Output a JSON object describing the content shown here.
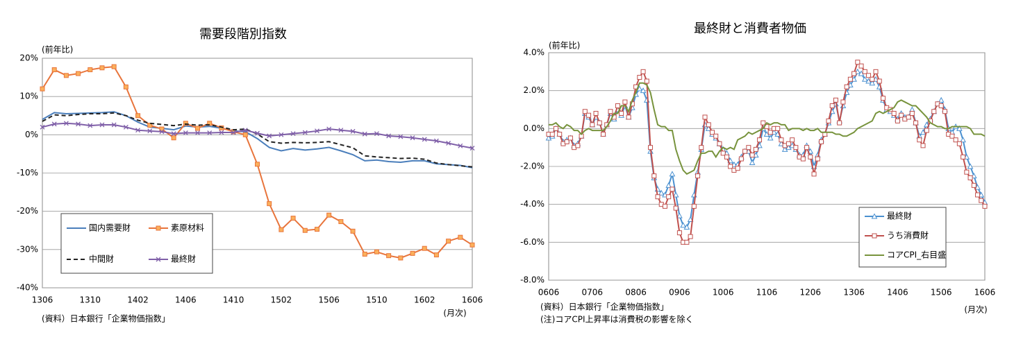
{
  "chart_data": [
    {
      "type": "line",
      "title": "需要段階別指数",
      "y_unit": "(前年比)",
      "x_unit": "(月次)",
      "notes": [
        "(資料）日本銀行「企業物価指数」"
      ],
      "categories": [
        "1306",
        null,
        null,
        null,
        "1310",
        null,
        null,
        null,
        "1402",
        null,
        null,
        null,
        "1406",
        null,
        null,
        null,
        "1410",
        null,
        null,
        null,
        "1502",
        null,
        null,
        null,
        "1506",
        null,
        null,
        null,
        "1510",
        null,
        null,
        null,
        "1602",
        null,
        null,
        null,
        "1606"
      ],
      "ylim": [
        -40,
        20
      ],
      "yticks": [
        {
          "value": -40,
          "label": "-40%"
        },
        {
          "value": -30,
          "label": "-30%"
        },
        {
          "value": -20,
          "label": "-20%"
        },
        {
          "value": -10,
          "label": "-10%"
        },
        {
          "value": 0,
          "label": "0%"
        },
        {
          "value": 10,
          "label": "10%"
        },
        {
          "value": 20,
          "label": "20%"
        }
      ],
      "grid": true,
      "legend": "lower left",
      "series": [
        {
          "name": "国内需要財",
          "color": "#4a7ebb",
          "marker": null,
          "dashed": false,
          "values": [
            4,
            5.8,
            5.5,
            5.6,
            5.7,
            5.8,
            6,
            5,
            3.3,
            2,
            1.7,
            1.3,
            2.3,
            2,
            2.2,
            1.7,
            1,
            0.8,
            -1,
            -3.3,
            -4.2,
            -3.6,
            -4,
            -3.7,
            -3.3,
            -4.2,
            -5.2,
            -6.8,
            -6.6,
            -7,
            -7.2,
            -6.8,
            -6.8,
            -7.6,
            -7.8,
            -8,
            -8.6
          ]
        },
        {
          "name": "素原材料",
          "color": "#e8743b",
          "marker": "square",
          "marker_fill": "#fbb05c",
          "dashed": false,
          "values": [
            12,
            17,
            15.5,
            16,
            17,
            17.5,
            17.8,
            12.5,
            5,
            2.5,
            1.5,
            -0.8,
            3,
            1.7,
            3,
            1.8,
            0.8,
            0,
            -7.7,
            -18,
            -24.8,
            -21.8,
            -25,
            -24.7,
            -21,
            -22.7,
            -25.2,
            -31.2,
            -30.6,
            -31.6,
            -32.2,
            -31,
            -29.7,
            -31.4,
            -27.8,
            -26.8,
            -28.8
          ]
        },
        {
          "name": "中間財",
          "color": "#222222",
          "marker": null,
          "dashed": true,
          "values": [
            3.5,
            5.2,
            5,
            5.3,
            5.5,
            5.5,
            5.7,
            5,
            3.8,
            3,
            2.7,
            2.4,
            2.8,
            2.5,
            2.6,
            2,
            1.3,
            1.5,
            0.2,
            -1.8,
            -2.2,
            -2,
            -2.1,
            -2,
            -1.8,
            -2.6,
            -3.4,
            -5.5,
            -5.8,
            -6,
            -6.2,
            -6.1,
            -6.4,
            -7.4,
            -7.8,
            -8.1,
            -8.4
          ]
        },
        {
          "name": "最終財",
          "color": "#7f5fa8",
          "marker": "x",
          "dashed": false,
          "values": [
            2,
            2.8,
            3,
            2.8,
            2.4,
            2.6,
            2.6,
            2,
            1.2,
            1,
            0.8,
            0.3,
            0.5,
            0.5,
            0.5,
            0.6,
            0.6,
            1.2,
            0.4,
            -0.3,
            0,
            0.3,
            0.6,
            1,
            1.5,
            1.2,
            0.9,
            0.2,
            0.3,
            -0.3,
            -0.5,
            -0.8,
            -1.2,
            -1.6,
            -2.2,
            -2.9,
            -3.5
          ]
        }
      ]
    },
    {
      "type": "line",
      "title": "最終財と消費者物価",
      "y_unit": "(前年比)",
      "x_unit": "(月次)",
      "notes": [
        "(資料）日本銀行「企業物価指数」",
        "(注)コアCPI上昇率は消費税の影響を除く"
      ],
      "categories": [
        "0606",
        null,
        null,
        null,
        null,
        null,
        null,
        null,
        null,
        null,
        null,
        null,
        "0706",
        null,
        null,
        null,
        null,
        null,
        null,
        null,
        null,
        null,
        null,
        null,
        "0806",
        null,
        null,
        null,
        null,
        null,
        null,
        null,
        null,
        null,
        null,
        null,
        "0906",
        null,
        null,
        null,
        null,
        null,
        null,
        null,
        null,
        null,
        null,
        null,
        "1006",
        null,
        null,
        null,
        null,
        null,
        null,
        null,
        null,
        null,
        null,
        null,
        "1106",
        null,
        null,
        null,
        null,
        null,
        null,
        null,
        null,
        null,
        null,
        null,
        "1206",
        null,
        null,
        null,
        null,
        null,
        null,
        null,
        null,
        null,
        null,
        null,
        "1306",
        null,
        null,
        null,
        null,
        null,
        null,
        null,
        null,
        null,
        null,
        null,
        "1406",
        null,
        null,
        null,
        null,
        null,
        null,
        null,
        null,
        null,
        null,
        null,
        "1506",
        null,
        null,
        null,
        null,
        null,
        null,
        null,
        null,
        null,
        null,
        null,
        "1606"
      ],
      "ylim": [
        -8,
        4
      ],
      "yticks": [
        {
          "value": -8,
          "label": "-8.0%"
        },
        {
          "value": -6,
          "label": "-6.0%"
        },
        {
          "value": -4,
          "label": "-4.0%"
        },
        {
          "value": -2,
          "label": "-2.0%"
        },
        {
          "value": 0,
          "label": "0.0%"
        },
        {
          "value": 2,
          "label": "2.0%"
        },
        {
          "value": 4,
          "label": "4.0%"
        }
      ],
      "grid": true,
      "legend": "lower right",
      "series": [
        {
          "name": "最終財",
          "color": "#4a90d0",
          "marker": "triangle",
          "marker_fill": "#ffffff",
          "dashed": false,
          "values": [
            -0.5,
            -0.4,
            0,
            -0.3,
            -0.7,
            -0.6,
            -0.5,
            -0.9,
            -0.8,
            -0.4,
            0.8,
            0.6,
            0.2,
            0.6,
            0.3,
            -0.3,
            0.2,
            0.8,
            0.5,
            1.0,
            0.7,
            1.2,
            0.6,
            1.1,
            1.8,
            2.1,
            2.0,
            1.5,
            -1.2,
            -2.6,
            -3.2,
            -3.4,
            -3.5,
            -3.0,
            -2.4,
            -3.5,
            -4.6,
            -5.1,
            -5.2,
            -4.8,
            -3.5,
            -2.3,
            -1.1,
            0.2,
            0.0,
            -0.3,
            -0.5,
            -0.8,
            -1.1,
            -1.3,
            -1.7,
            -1.9,
            -1.9,
            -1.5,
            -1.2,
            -1.2,
            -1.8,
            -1.4,
            -0.9,
            0.0,
            -0.3,
            -0.5,
            -0.2,
            -0.3,
            -0.8,
            -1.1,
            -1.0,
            -0.9,
            -1.1,
            -1.4,
            -1.4,
            -0.9,
            -1.2,
            -2.0,
            -1.4,
            -0.6,
            -0.3,
            0.3,
            0.9,
            1.3,
            0.4,
            1.2,
            1.9,
            2.3,
            2.6,
            3.0,
            2.9,
            2.6,
            2.5,
            2.4,
            2.6,
            2.2,
            1.5,
            1.0,
            0.9,
            0.7,
            0.5,
            0.8,
            0.6,
            0.6,
            1.0,
            0.3,
            -0.4,
            -0.2,
            0.2,
            0.5,
            0.9,
            1.3,
            1.5,
            1.0,
            0.0,
            -0.2,
            0.1,
            0.0,
            -0.6,
            -1.5,
            -2.0,
            -2.5,
            -3.1,
            -3.5,
            -3.9
          ]
        },
        {
          "name": "うち消費財",
          "color": "#c0504d",
          "marker": "square",
          "marker_fill": "#ffffff",
          "dashed": false,
          "values": [
            -0.3,
            -0.3,
            0,
            -0.3,
            -0.8,
            -0.7,
            -0.5,
            -1.0,
            -0.9,
            -0.4,
            0.9,
            0.7,
            0.2,
            0.8,
            0.3,
            -0.3,
            0.2,
            0.9,
            0.6,
            1.2,
            0.8,
            1.4,
            0.6,
            1.3,
            2.2,
            2.7,
            3.0,
            2.5,
            -1.0,
            -2.5,
            -3.6,
            -4.0,
            -4.1,
            -3.6,
            -3.2,
            -4.2,
            -5.5,
            -6.0,
            -6.0,
            -5.7,
            -4.1,
            -2.5,
            -1.0,
            0.6,
            0.2,
            -0.2,
            -0.4,
            -0.8,
            -1.3,
            -1.5,
            -2.0,
            -2.2,
            -2.1,
            -1.6,
            -1.2,
            -1.0,
            -1.4,
            -1.1,
            -0.6,
            0.3,
            0.1,
            -0.2,
            0.0,
            0.0,
            -0.6,
            -0.9,
            -0.8,
            -0.6,
            -1.0,
            -1.5,
            -1.6,
            -1.0,
            -1.5,
            -2.4,
            -1.6,
            -0.7,
            -0.3,
            0.4,
            1.2,
            1.5,
            0.3,
            1.4,
            2.2,
            2.6,
            2.9,
            3.5,
            3.3,
            3.0,
            2.8,
            2.6,
            3.0,
            2.5,
            1.6,
            1.1,
            1.0,
            0.8,
            0.4,
            0.7,
            0.5,
            0.6,
            0.8,
            0.3,
            -0.6,
            -0.9,
            -0.1,
            0.4,
            0.9,
            1.3,
            1.2,
            0.9,
            -0.3,
            -0.4,
            -0.6,
            -0.8,
            -1.5,
            -2.3,
            -2.6,
            -3.0,
            -3.5,
            -3.8,
            -4.1
          ]
        },
        {
          "name": "コアCPI_右目盛",
          "color": "#77933c",
          "marker": null,
          "dashed": false,
          "values": [
            0.2,
            0.2,
            0.3,
            0.1,
            0.0,
            0.2,
            0.1,
            -0.1,
            -0.1,
            -0.3,
            -0.1,
            0.0,
            -0.1,
            -0.1,
            -0.1,
            -0.1,
            0.1,
            0.4,
            0.8,
            0.8,
            1.2,
            1.2,
            0.9,
            1.5,
            1.9,
            2.4,
            2.4,
            2.3,
            1.9,
            1.0,
            0.2,
            0.1,
            0.1,
            -0.1,
            -0.1,
            -1.1,
            -1.7,
            -2.2,
            -2.4,
            -2.3,
            -2.2,
            -1.7,
            -1.3,
            -1.3,
            -1.2,
            -1.2,
            -1.5,
            -1.2,
            -1.0,
            -1.1,
            -1.0,
            -1.1,
            -0.6,
            -0.5,
            -0.4,
            -0.2,
            -0.3,
            -0.2,
            -0.1,
            0.0,
            0.3,
            0.2,
            0.3,
            0.3,
            0.2,
            0.2,
            -0.1,
            0.0,
            0.0,
            0.0,
            -0.1,
            0.0,
            -0.1,
            -0.1,
            0.0,
            -0.2,
            -0.2,
            -0.2,
            -0.2,
            -0.3,
            -0.3,
            -0.4,
            -0.4,
            -0.3,
            -0.2,
            0.0,
            0.1,
            0.2,
            0.3,
            0.4,
            0.8,
            0.9,
            0.8,
            0.9,
            1.0,
            1.1,
            1.4,
            1.5,
            1.4,
            1.3,
            1.2,
            1.2,
            1.0,
            0.8,
            0.6,
            0.3,
            0.2,
            0.1,
            0.1,
            0.0,
            0.0,
            0.1,
            0.1,
            0.1,
            0.1,
            0.1,
            0.0,
            -0.3,
            -0.3,
            -0.3,
            -0.4
          ]
        }
      ]
    }
  ]
}
